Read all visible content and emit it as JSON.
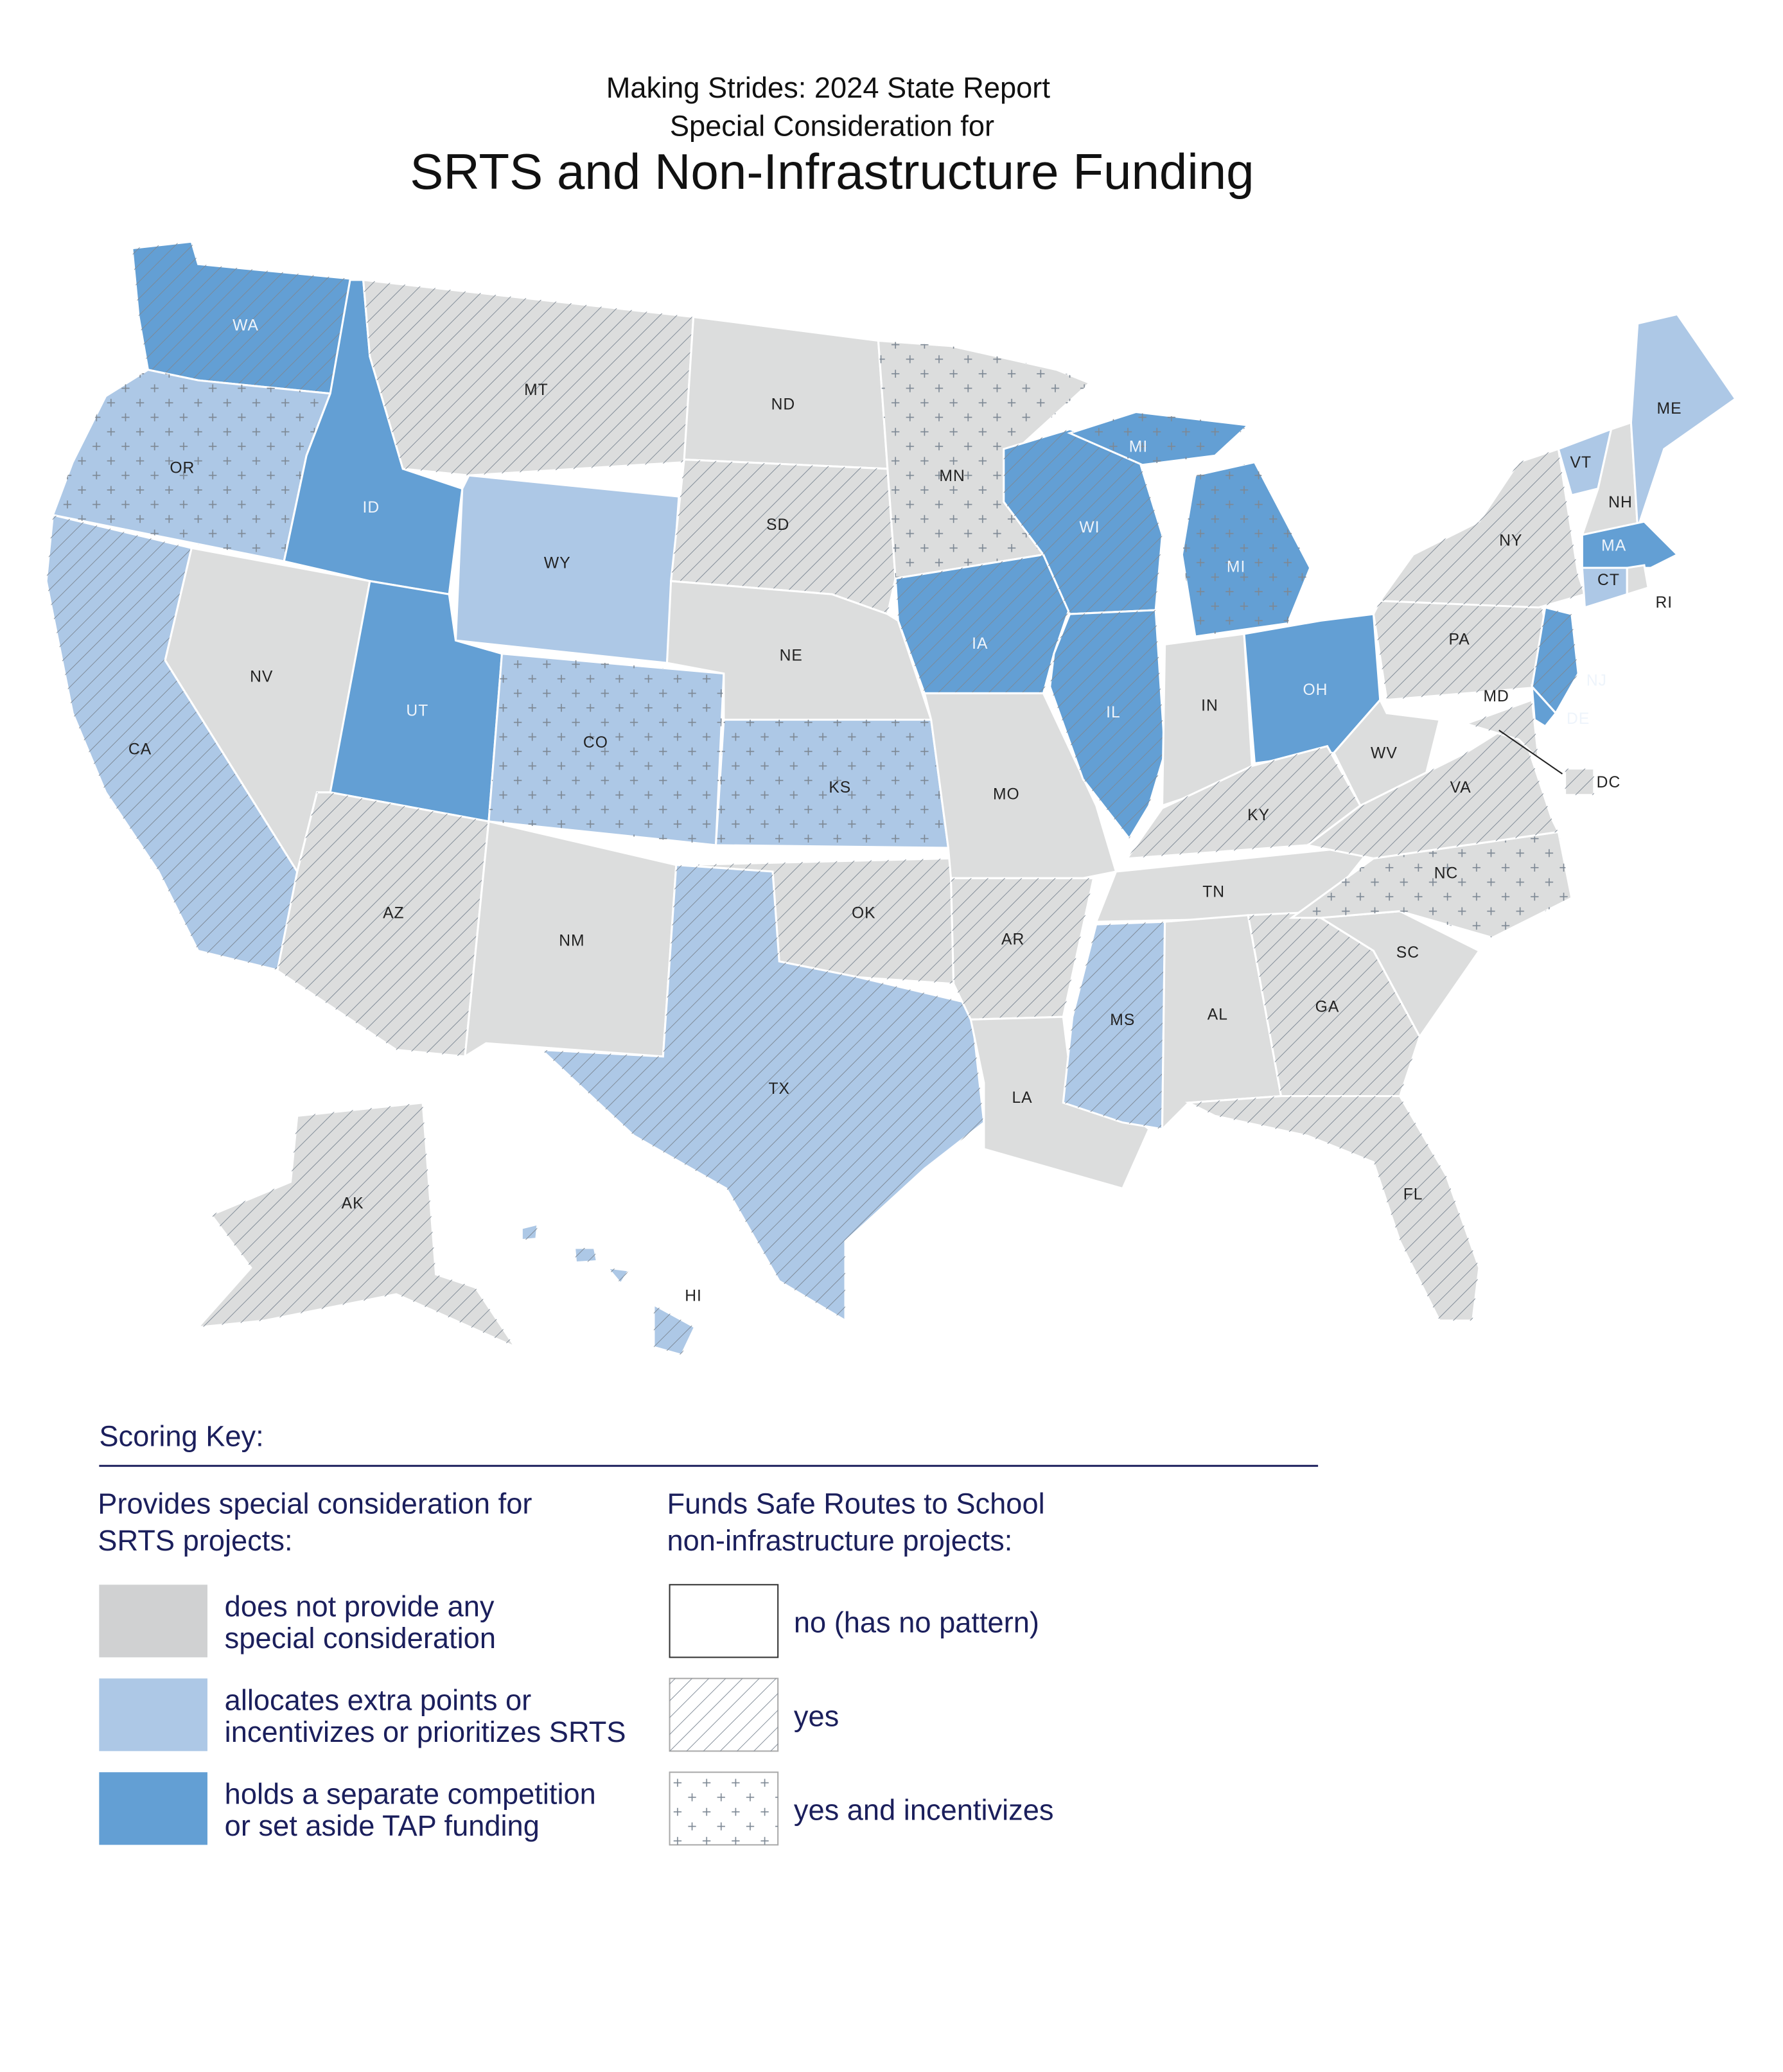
{
  "header": {
    "subtitle_lines": [
      "Making Strides:  2024 State Report",
      "Special Consideration for"
    ],
    "title": "SRTS and Non-Infrastructure Funding"
  },
  "states": [
    {
      "label": "WA",
      "color": "#639fd4",
      "pattern": "hatch"
    },
    {
      "label": "OR",
      "color": "#adc8e6",
      "pattern": "plus"
    },
    {
      "label": "CA",
      "color": "#adc8e6",
      "pattern": "hatch"
    },
    {
      "label": "NV",
      "color": "#dcdddd",
      "pattern": "none"
    },
    {
      "label": "ID",
      "color": "#639fd4",
      "pattern": "none"
    },
    {
      "label": "MT",
      "color": "#dcdddd",
      "pattern": "hatch"
    },
    {
      "label": "WY",
      "color": "#adc8e6",
      "pattern": "none"
    },
    {
      "label": "UT",
      "color": "#639fd4",
      "pattern": "none"
    },
    {
      "label": "AZ",
      "color": "#dcdddd",
      "pattern": "hatch"
    },
    {
      "label": "CO",
      "color": "#adc8e6",
      "pattern": "plus"
    },
    {
      "label": "NM",
      "color": "#dcdddd",
      "pattern": "none"
    },
    {
      "label": "ND",
      "color": "#dcdddd",
      "pattern": "none"
    },
    {
      "label": "SD",
      "color": "#dcdddd",
      "pattern": "hatch"
    },
    {
      "label": "NE",
      "color": "#dcdddd",
      "pattern": "none"
    },
    {
      "label": "KS",
      "color": "#adc8e6",
      "pattern": "plus"
    },
    {
      "label": "OK",
      "color": "#dcdddd",
      "pattern": "hatch"
    },
    {
      "label": "TX",
      "color": "#adc8e6",
      "pattern": "hatch"
    },
    {
      "label": "MN",
      "color": "#dcdddd",
      "pattern": "plus"
    },
    {
      "label": "IA",
      "color": "#639fd4",
      "pattern": "hatch"
    },
    {
      "label": "MO",
      "color": "#dcdddd",
      "pattern": "none"
    },
    {
      "label": "AR",
      "color": "#dcdddd",
      "pattern": "hatch"
    },
    {
      "label": "LA",
      "color": "#dcdddd",
      "pattern": "none"
    },
    {
      "label": "WI",
      "color": "#639fd4",
      "pattern": "hatch"
    },
    {
      "label": "MI",
      "color": "#639fd4",
      "pattern": "plus"
    },
    {
      "label": "IL",
      "color": "#639fd4",
      "pattern": "hatch"
    },
    {
      "label": "IN",
      "color": "#dcdddd",
      "pattern": "none"
    },
    {
      "label": "OH",
      "color": "#639fd4",
      "pattern": "none"
    },
    {
      "label": "KY",
      "color": "#dcdddd",
      "pattern": "hatch"
    },
    {
      "label": "TN",
      "color": "#dcdddd",
      "pattern": "none"
    },
    {
      "label": "MS",
      "color": "#adc8e6",
      "pattern": "hatch"
    },
    {
      "label": "AL",
      "color": "#dcdddd",
      "pattern": "none"
    },
    {
      "label": "GA",
      "color": "#dcdddd",
      "pattern": "hatch"
    },
    {
      "label": "FL",
      "color": "#dcdddd",
      "pattern": "hatch"
    },
    {
      "label": "SC",
      "color": "#dcdddd",
      "pattern": "none"
    },
    {
      "label": "NC",
      "color": "#dcdddd",
      "pattern": "plus"
    },
    {
      "label": "VA",
      "color": "#dcdddd",
      "pattern": "hatch"
    },
    {
      "label": "WV",
      "color": "#dcdddd",
      "pattern": "none"
    },
    {
      "label": "PA",
      "color": "#dcdddd",
      "pattern": "hatch"
    },
    {
      "label": "NY",
      "color": "#dcdddd",
      "pattern": "hatch"
    },
    {
      "label": "VT",
      "color": "#adc8e6",
      "pattern": "none"
    },
    {
      "label": "NH",
      "color": "#dcdddd",
      "pattern": "none"
    },
    {
      "label": "ME",
      "color": "#adc8e6",
      "pattern": "none"
    },
    {
      "label": "MA",
      "color": "#639fd4",
      "pattern": "none"
    },
    {
      "label": "CT",
      "color": "#adc8e6",
      "pattern": "none"
    },
    {
      "label": "RI",
      "color": "#dcdddd",
      "pattern": "none"
    },
    {
      "label": "NJ",
      "color": "#639fd4",
      "pattern": "hatch"
    },
    {
      "label": "DE",
      "color": "#639fd4",
      "pattern": "none"
    },
    {
      "label": "MD",
      "color": "#dcdddd",
      "pattern": "hatch"
    },
    {
      "label": "DC",
      "color": "#dcdddd",
      "pattern": "hatch"
    },
    {
      "label": "AK",
      "color": "#dcdddd",
      "pattern": "hatch"
    },
    {
      "label": "HI",
      "color": "#adc8e6",
      "pattern": "hatch"
    }
  ],
  "legend": {
    "title": "Scoring Key:",
    "consideration": {
      "heading": [
        "Provides special consideration for",
        "SRTS projects:"
      ],
      "items": [
        {
          "label": [
            "does not provide any",
            "special consideration"
          ],
          "color": "#d0d1d2"
        },
        {
          "label": [
            "allocates extra points or",
            "incentivizes or prioritizes SRTS"
          ],
          "color": "#adc8e6"
        },
        {
          "label": [
            "holds a separate competition",
            "or set aside TAP funding"
          ],
          "color": "#639fd4"
        }
      ]
    },
    "funding": {
      "heading": [
        "Funds Safe Routes to School",
        "non-infrastructure projects:"
      ],
      "items": [
        {
          "label": [
            "no (has no pattern)"
          ],
          "pattern": "none"
        },
        {
          "label": [
            "yes"
          ],
          "pattern": "hatch"
        },
        {
          "label": [
            "yes and incentivizes"
          ],
          "pattern": "plus"
        }
      ]
    }
  }
}
